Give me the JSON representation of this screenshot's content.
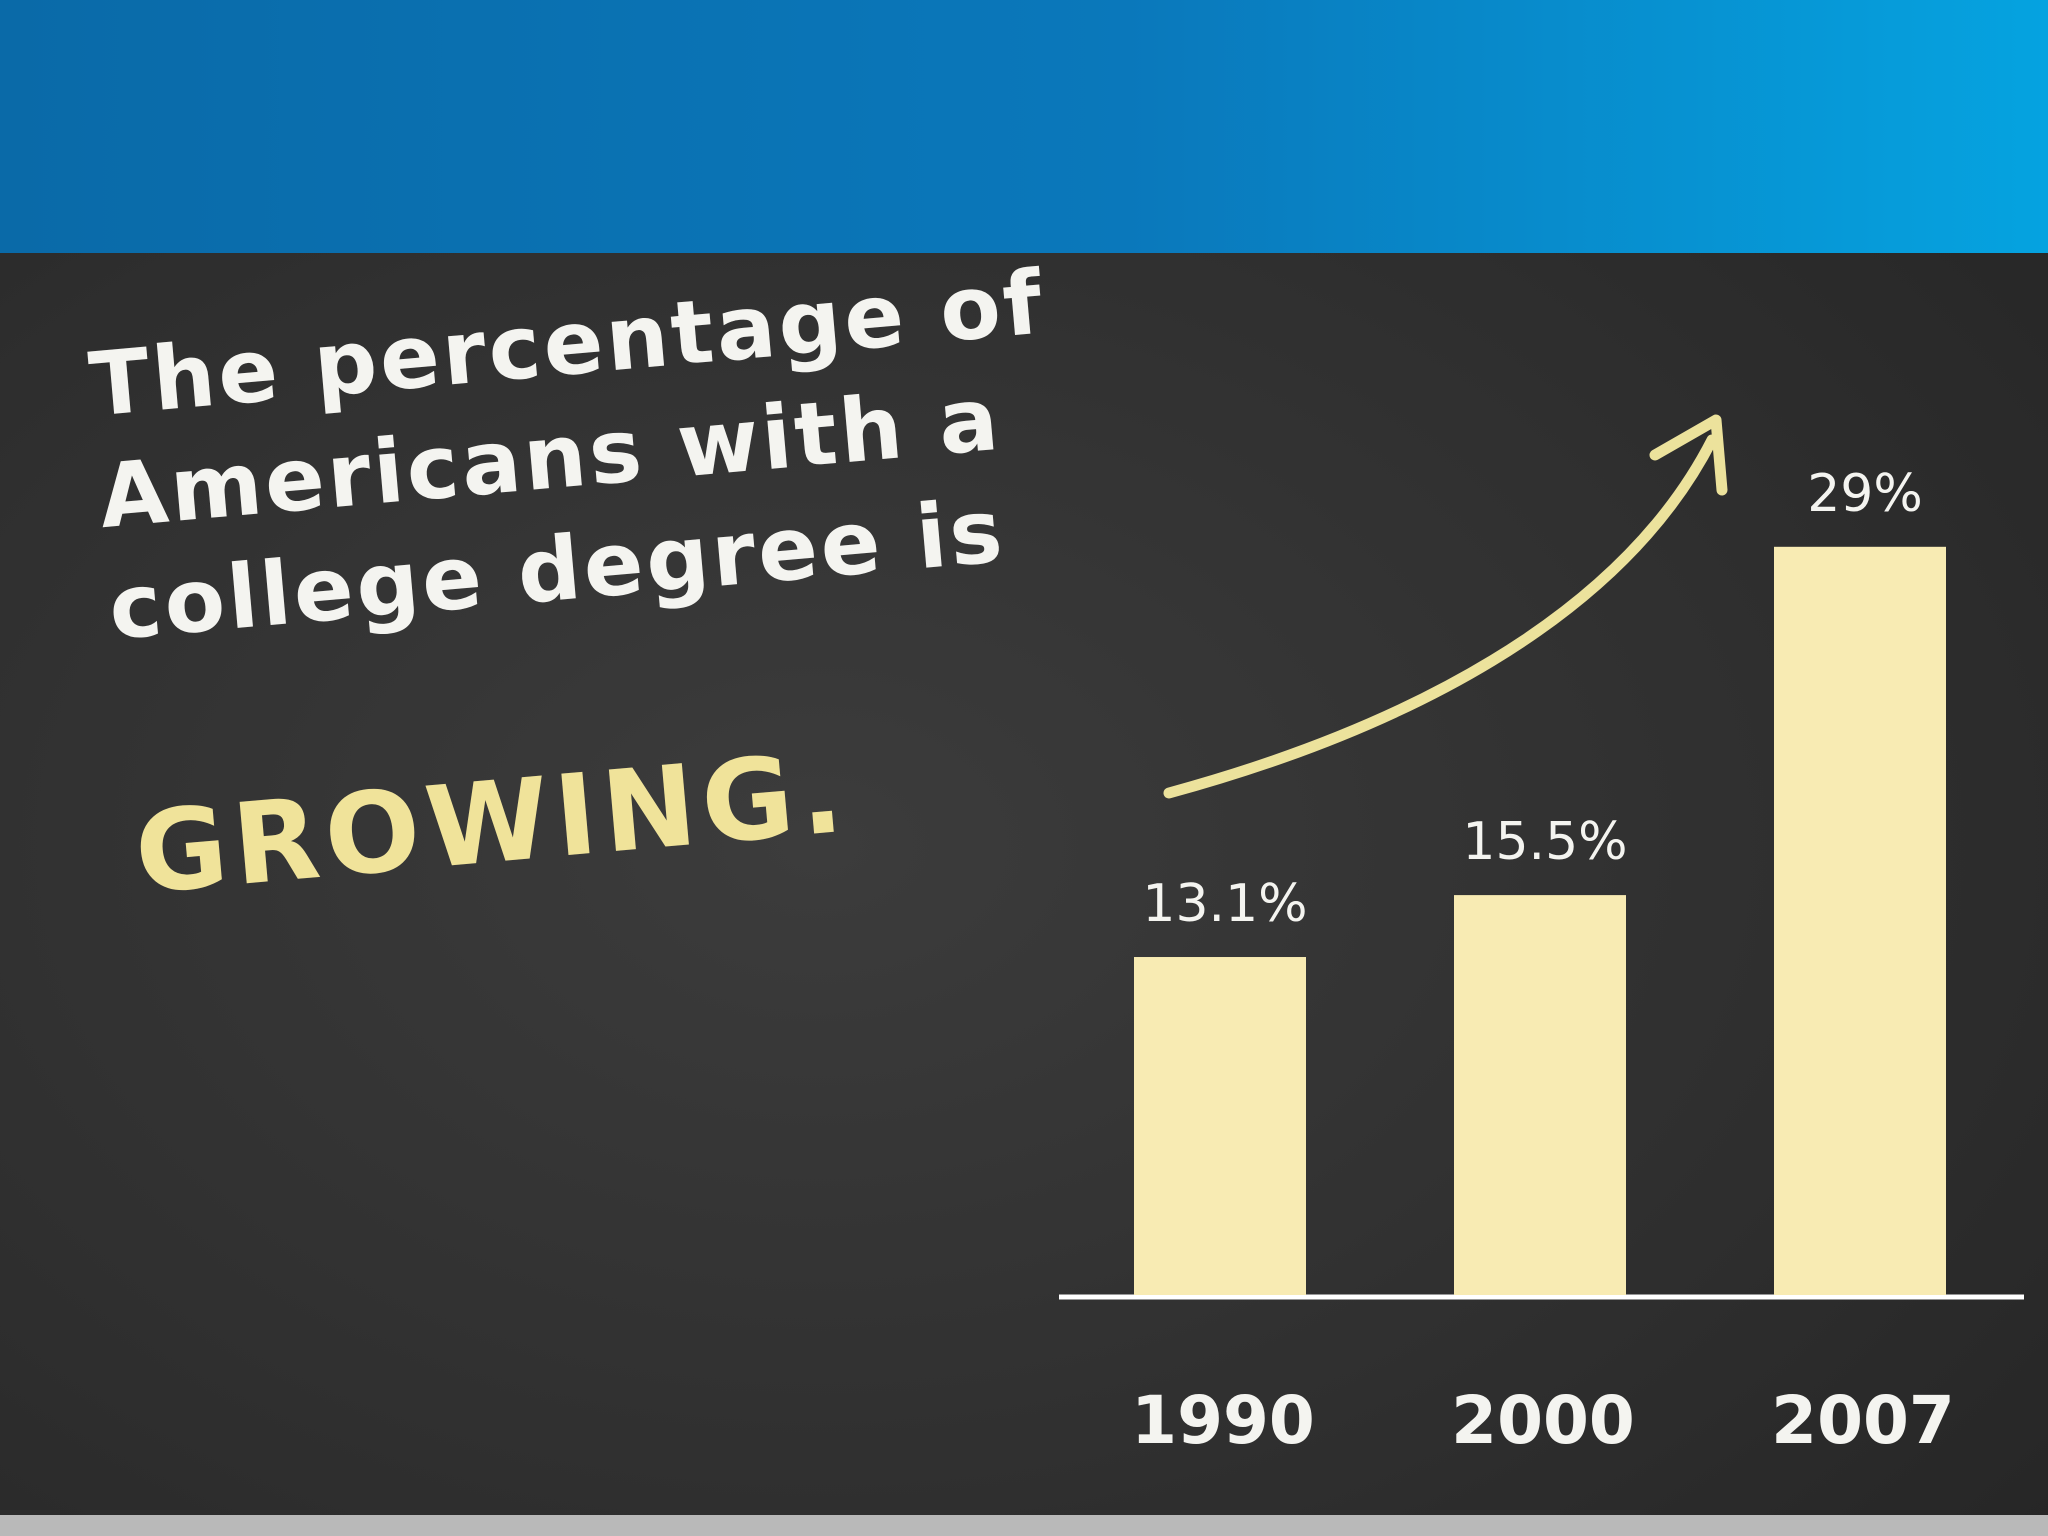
{
  "chart_data": {
    "type": "bar",
    "title": "The percentage of Americans with a college degree is",
    "annotation": "GROWING.",
    "categories": [
      "1990",
      "2000",
      "2007"
    ],
    "values": [
      13.1,
      15.5,
      29
    ],
    "value_labels": [
      "13.1%",
      "15.5%",
      "29%"
    ],
    "color": "#f8ebb3"
  }
}
